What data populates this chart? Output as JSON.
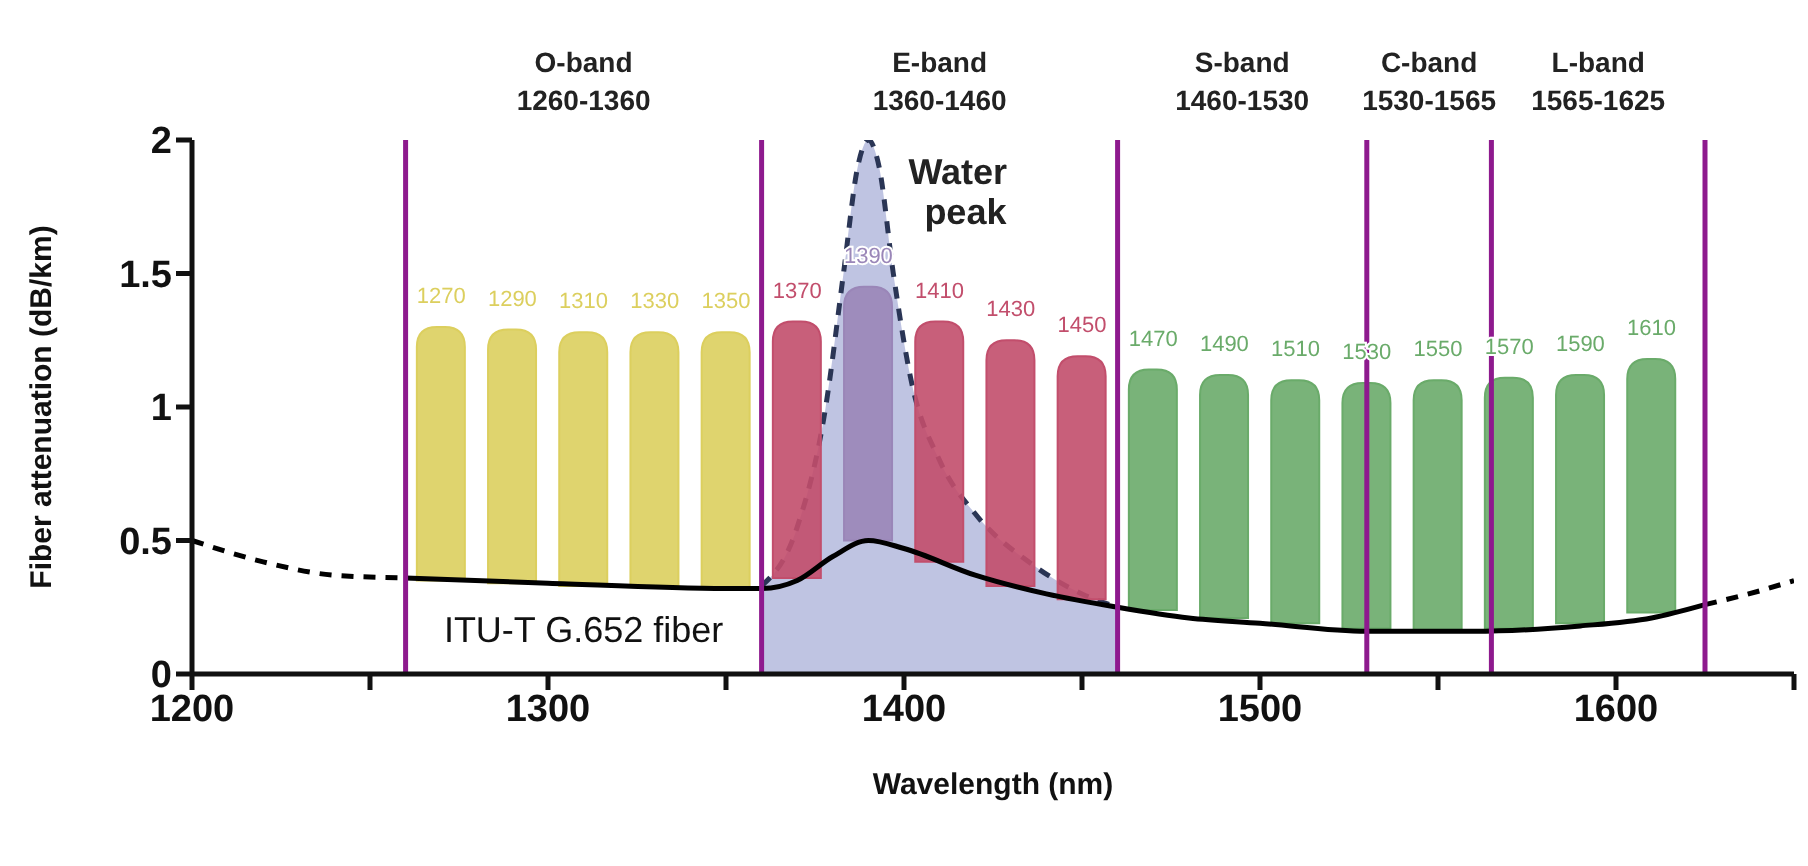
{
  "chart_data": {
    "type": "bar",
    "xlabel": "Wavelength (nm)",
    "ylabel": "Fiber attenuation (dB/km)",
    "xlim": [
      1200,
      1650
    ],
    "xticks": [
      1200,
      {
        "value": 1250,
        "label": null
      },
      1300,
      {
        "value": 1350,
        "label": null
      },
      1400,
      {
        "value": 1450,
        "label": null
      },
      1500,
      {
        "value": 1550,
        "label": null
      },
      1600,
      {
        "value": 1650,
        "label": null
      }
    ],
    "ylim": [
      0,
      2
    ],
    "yticks": [
      0,
      0.5,
      1,
      1.5,
      2
    ],
    "grid": false,
    "legend": false,
    "series": [
      {
        "x": [
          1270,
          1290,
          1310,
          1330,
          1350,
          1370,
          1390,
          1410,
          1430,
          1450,
          1470,
          1490,
          1510,
          1530,
          1550,
          1570,
          1590,
          1610
        ],
        "base": [
          0.35,
          0.34,
          0.33,
          0.33,
          0.32,
          0.36,
          0.5,
          0.42,
          0.33,
          0.28,
          0.24,
          0.21,
          0.19,
          0.17,
          0.16,
          0.17,
          0.19,
          0.23
        ],
        "values": [
          0.95,
          0.95,
          0.95,
          0.95,
          0.96,
          0.96,
          0.95,
          0.9,
          0.92,
          0.91,
          0.9,
          0.91,
          0.91,
          0.92,
          0.94,
          0.94,
          0.93,
          0.95
        ],
        "colors": [
          "#dccf5e",
          "#dccf5e",
          "#dccf5e",
          "#dccf5e",
          "#dccf5e",
          "#c24e6c",
          "#9a86b8",
          "#c24e6c",
          "#c24e6c",
          "#c24e6c",
          "#6aab6a",
          "#6aab6a",
          "#6aab6a",
          "#6aab6a",
          "#6aab6a",
          "#6aab6a",
          "#6aab6a",
          "#6aab6a"
        ]
      },
      {
        "type": "area",
        "name": "Water peak",
        "color": "#a9b0d8",
        "line_style": "dashed",
        "x": [
          1360,
          1370,
          1378,
          1383,
          1387,
          1390,
          1393,
          1397,
          1402,
          1410,
          1420,
          1435,
          1450,
          1460
        ],
        "values": [
          0.33,
          0.55,
          1.0,
          1.5,
          1.9,
          2.0,
          1.9,
          1.5,
          1.1,
          0.8,
          0.6,
          0.42,
          0.3,
          0.25
        ]
      },
      {
        "type": "line",
        "color": "#000000",
        "line_style": "dashed",
        "x": [
          1200,
          1220,
          1240,
          1260
        ],
        "values": [
          0.5,
          0.42,
          0.37,
          0.36
        ]
      },
      {
        "type": "line",
        "color": "#000000",
        "line_style": "solid",
        "x": [
          1260,
          1300,
          1350,
          1360,
          1370,
          1380,
          1390,
          1400,
          1420,
          1440,
          1460,
          1480,
          1500,
          1530,
          1560,
          1590,
          1610,
          1625
        ],
        "values": [
          0.36,
          0.34,
          0.32,
          0.32,
          0.35,
          0.44,
          0.5,
          0.47,
          0.37,
          0.3,
          0.25,
          0.21,
          0.19,
          0.16,
          0.16,
          0.18,
          0.21,
          0.26
        ]
      },
      {
        "type": "line",
        "color": "#000000",
        "line_style": "dashed",
        "x": [
          1625,
          1640,
          1650
        ],
        "values": [
          0.26,
          0.31,
          0.35
        ]
      }
    ],
    "ref_lines": [
      {
        "axis": "x",
        "value": 1260,
        "color": "#8e1a8e"
      },
      {
        "axis": "x",
        "value": 1360,
        "color": "#8e1a8e"
      },
      {
        "axis": "x",
        "value": 1460,
        "color": "#8e1a8e"
      },
      {
        "axis": "x",
        "value": 1530,
        "color": "#8e1a8e"
      },
      {
        "axis": "x",
        "value": 1565,
        "color": "#8e1a8e"
      },
      {
        "axis": "x",
        "value": 1625,
        "color": "#8e1a8e"
      }
    ],
    "annotations": [
      "O-band\n1260-1360",
      "E-band\n1360-1460",
      "S-band\n1460-1530",
      "C-band\n1530-1565",
      "L-band\n1565-1625",
      "ITU-T G.652 fiber",
      {
        "text": "1270",
        "x": 1270,
        "y": 1.3
      },
      {
        "text": "1290",
        "x": 1290,
        "y": 1.29
      },
      {
        "text": "1310",
        "x": 1310,
        "y": 1.28
      },
      {
        "text": "1330",
        "x": 1330,
        "y": 1.28
      },
      {
        "text": "1350",
        "x": 1350,
        "y": 1.28
      },
      {
        "text": "1370",
        "x": 1370,
        "y": 1.32
      },
      {
        "text": "1390",
        "x": 1390,
        "y": 1.45
      },
      {
        "text": "1410",
        "x": 1410,
        "y": 1.32
      },
      {
        "text": "1430",
        "x": 1430,
        "y": 1.25
      },
      {
        "text": "1450",
        "x": 1450,
        "y": 1.19
      },
      {
        "text": "1470",
        "x": 1470,
        "y": 1.14
      },
      {
        "text": "1490",
        "x": 1490,
        "y": 1.12
      },
      {
        "text": "1510",
        "x": 1510,
        "y": 1.1
      },
      {
        "text": "1530",
        "x": 1530,
        "y": 1.09
      },
      {
        "text": "1550",
        "x": 1550,
        "y": 1.1
      },
      {
        "text": "1570",
        "x": 1570,
        "y": 1.11
      },
      {
        "text": "1590",
        "x": 1590,
        "y": 1.12
      },
      {
        "text": "1610",
        "x": 1610,
        "y": 1.18
      }
    ]
  }
}
